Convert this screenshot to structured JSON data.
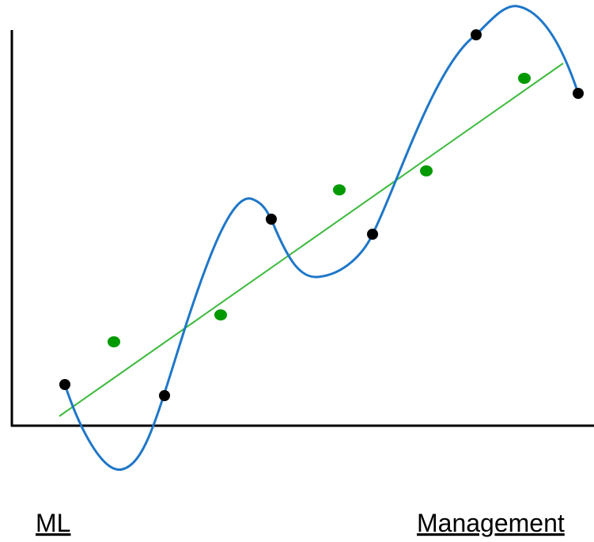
{
  "labels": {
    "left": "ML",
    "right": "Management"
  }
}
